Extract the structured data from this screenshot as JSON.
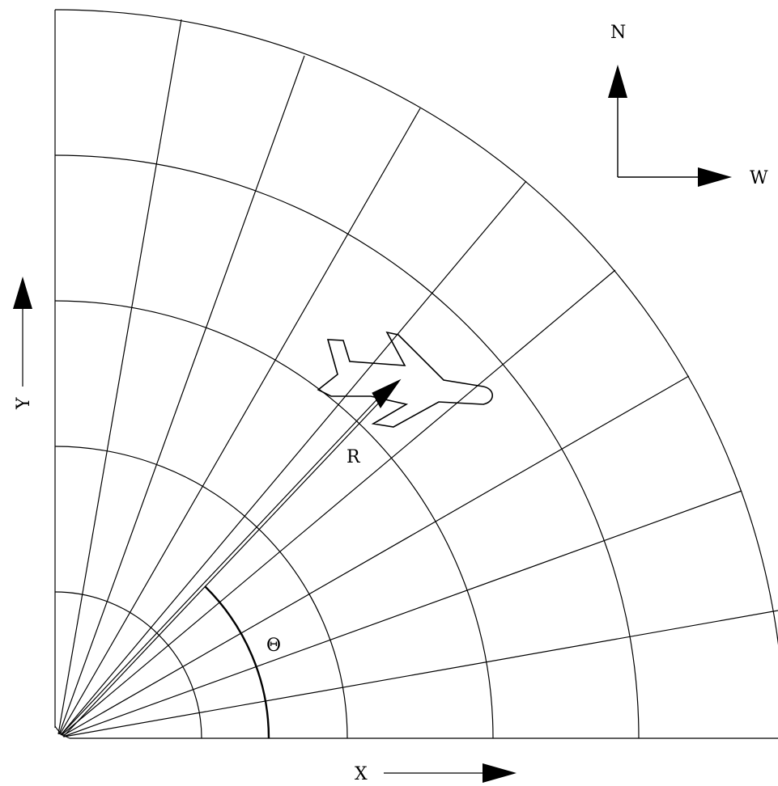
{
  "labels": {
    "north": "N",
    "west": "W",
    "x_axis": "X",
    "y_axis": "Y",
    "range": "R",
    "angle": "Θ"
  },
  "grid": {
    "radial_line_count": 10,
    "ring_count": 5
  },
  "colors": {
    "ink": "#000000",
    "background": "#ffffff"
  }
}
